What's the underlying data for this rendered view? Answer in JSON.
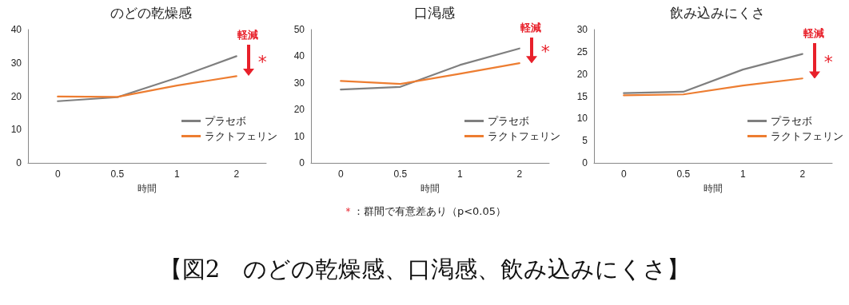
{
  "chart_data": [
    {
      "type": "line",
      "title": "のどの乾燥感",
      "xlabel": "時間",
      "categories": [
        "0",
        "0.5",
        "1",
        "2"
      ],
      "ylim": [
        0,
        40
      ],
      "yticks": [
        0,
        10,
        20,
        30,
        40
      ],
      "legend": "right",
      "marker": "none",
      "line_style": "solid",
      "annotations": [
        "軽減",
        "*"
      ],
      "series": [
        {
          "name": "プラセボ",
          "color": "#7f7f7f",
          "values": [
            18.5,
            19.7,
            25.5,
            32
          ]
        },
        {
          "name": "ラクトフェリン",
          "color": "#ed7d31",
          "values": [
            19.9,
            19.8,
            23.2,
            26
          ]
        }
      ]
    },
    {
      "type": "line",
      "title": "口渇感",
      "xlabel": "時間",
      "categories": [
        "0",
        "0.5",
        "1",
        "2"
      ],
      "ylim": [
        0,
        50
      ],
      "yticks": [
        0,
        10,
        20,
        30,
        40,
        50
      ],
      "legend": "right",
      "marker": "none",
      "line_style": "solid",
      "annotations": [
        "軽減",
        "*"
      ],
      "series": [
        {
          "name": "プラセボ",
          "color": "#7f7f7f",
          "values": [
            27.5,
            28.5,
            36.7,
            42.9
          ]
        },
        {
          "name": "ラクトフェリン",
          "color": "#ed7d31",
          "values": [
            30.7,
            29.6,
            33.4,
            37.4
          ]
        }
      ]
    },
    {
      "type": "line",
      "title": "飲み込みにくさ",
      "xlabel": "時間",
      "categories": [
        "0",
        "0.5",
        "1",
        "2"
      ],
      "ylim": [
        0,
        30
      ],
      "yticks": [
        0,
        5,
        10,
        15,
        20,
        25,
        30
      ],
      "legend": "right",
      "marker": "none",
      "line_style": "solid",
      "annotations": [
        "軽減",
        "*",
        "＊：群間で有意差あり（p<0.05）",
        "【図2　のどの乾燥感、口渇感、飲み込みにくさ】"
      ],
      "series": [
        {
          "name": "プラセボ",
          "color": "#7f7f7f",
          "values": [
            15.7,
            16.0,
            21.0,
            24.5
          ]
        },
        {
          "name": "ラクトフェリン",
          "color": "#ed7d31",
          "values": [
            15.2,
            15.4,
            17.4,
            19.0
          ]
        }
      ]
    }
  ]
}
